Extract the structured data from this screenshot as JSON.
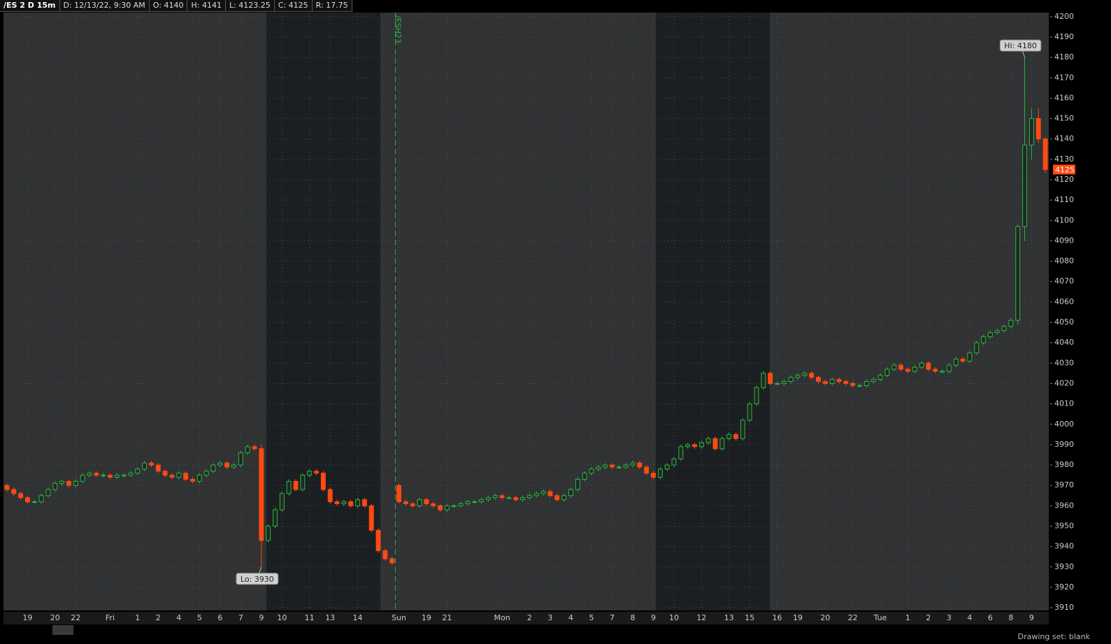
{
  "header": {
    "symbol": "/ES 2 D 15m",
    "fields": [
      "D: 12/13/22, 9:30 AM",
      "O: 4140",
      "H: 4141",
      "L: 4123.25",
      "C: 4125",
      "R: 17.75"
    ]
  },
  "footer": {
    "drawing_set": "Drawing set: blank"
  },
  "chart_data": {
    "type": "candlestick",
    "up_color": "#2fb344",
    "down_color": "#ff4a12",
    "grid": true,
    "xlim": [
      -0.5,
      151.5
    ],
    "ylim": [
      3909,
      4202
    ],
    "yticks": [
      3910,
      3920,
      3930,
      3940,
      3950,
      3960,
      3970,
      3980,
      3990,
      4000,
      4010,
      4020,
      4030,
      4040,
      4050,
      4060,
      4070,
      4080,
      4090,
      4100,
      4110,
      4120,
      4130,
      4140,
      4150,
      4160,
      4170,
      4180,
      4190,
      4200
    ],
    "xticks": [
      {
        "value": 3,
        "label": "19"
      },
      {
        "value": 7,
        "label": "20"
      },
      {
        "value": 10,
        "label": "22"
      },
      {
        "value": 15,
        "label": "Fri"
      },
      {
        "value": 19,
        "label": "1"
      },
      {
        "value": 22,
        "label": "2"
      },
      {
        "value": 25,
        "label": "4"
      },
      {
        "value": 28,
        "label": "5"
      },
      {
        "value": 31,
        "label": "6"
      },
      {
        "value": 34,
        "label": "7"
      },
      {
        "value": 37,
        "label": "9"
      },
      {
        "value": 40,
        "label": "10"
      },
      {
        "value": 44,
        "label": "11"
      },
      {
        "value": 47,
        "label": "13"
      },
      {
        "value": 51,
        "label": "14"
      },
      {
        "value": 57,
        "label": "Sun"
      },
      {
        "value": 61,
        "label": "19"
      },
      {
        "value": 64,
        "label": "21"
      },
      {
        "value": 72,
        "label": "Mon"
      },
      {
        "value": 76,
        "label": "2"
      },
      {
        "value": 79,
        "label": "3"
      },
      {
        "value": 82,
        "label": "4"
      },
      {
        "value": 85,
        "label": "5"
      },
      {
        "value": 88,
        "label": "7"
      },
      {
        "value": 91,
        "label": "8"
      },
      {
        "value": 94,
        "label": "9"
      },
      {
        "value": 97,
        "label": "10"
      },
      {
        "value": 101,
        "label": "12"
      },
      {
        "value": 105,
        "label": "13"
      },
      {
        "value": 108,
        "label": "15"
      },
      {
        "value": 112,
        "label": "16"
      },
      {
        "value": 115,
        "label": "19"
      },
      {
        "value": 119,
        "label": "20"
      },
      {
        "value": 123,
        "label": "22"
      },
      {
        "value": 127,
        "label": "Tue"
      },
      {
        "value": 131,
        "label": "1"
      },
      {
        "value": 134,
        "label": "2"
      },
      {
        "value": 137,
        "label": "3"
      },
      {
        "value": 140,
        "label": "4"
      },
      {
        "value": 143,
        "label": "6"
      },
      {
        "value": 146,
        "label": "8"
      },
      {
        "value": 149,
        "label": "9"
      }
    ],
    "open": [
      3970,
      3968,
      3966,
      3964,
      3962,
      3962,
      3965,
      3968,
      3971,
      3972,
      3970,
      3972,
      3975,
      3976,
      3975,
      3975,
      3974,
      3975,
      3975,
      3976,
      3978,
      3981,
      3980,
      3977,
      3975,
      3974,
      3976,
      3973,
      3972,
      3975,
      3977,
      3980,
      3981,
      3979,
      3980,
      3986,
      3989,
      3988,
      3943,
      3950,
      3958,
      3966,
      3972,
      3968,
      3975,
      3977,
      3976,
      3968,
      3962,
      3961,
      3962,
      3960,
      3963,
      3960,
      3948,
      3938,
      3934,
      3970,
      3962,
      3961,
      3960,
      3963,
      3961,
      3960,
      3958,
      3960,
      3960,
      3961,
      3962,
      3962,
      3963,
      3964,
      3965,
      3964,
      3964,
      3963,
      3964,
      3965,
      3966,
      3967,
      3965,
      3963,
      3965,
      3968,
      3973,
      3976,
      3978,
      3979,
      3980,
      3979,
      3979,
      3980,
      3981,
      3979,
      3976,
      3974,
      3978,
      3980,
      3983,
      3989,
      3990,
      3989,
      3991,
      3993,
      3988,
      3993,
      3995,
      3993,
      4002,
      4010,
      4018,
      4025,
      4020,
      4020,
      4021,
      4023,
      4024,
      4025,
      4023,
      4021,
      4020,
      4022,
      4021,
      4020,
      4019,
      4019,
      4021,
      4022,
      4024,
      4027,
      4029,
      4027,
      4026,
      4028,
      4030,
      4027,
      4026,
      4026,
      4029,
      4032,
      4031,
      4035,
      4040,
      4043,
      4045,
      4046,
      4048,
      4051,
      4097,
      4137,
      4150,
      4140
    ],
    "high": [
      3971,
      3969,
      3967,
      3965,
      3963,
      3966,
      3969,
      3972,
      3973,
      3973,
      3973,
      3976,
      3977,
      3977,
      3976,
      3976,
      3976,
      3976,
      3977,
      3979,
      3982,
      3982,
      3981,
      3978,
      3976,
      3977,
      3977,
      3974,
      3976,
      3978,
      3981,
      3982,
      3982,
      3981,
      3987,
      3990,
      3990,
      3990,
      3951,
      3959,
      3967,
      3973,
      3973,
      3976,
      3978,
      3978,
      3977,
      3969,
      3963,
      3963,
      3963,
      3964,
      3964,
      3961,
      3949,
      3939,
      3935,
      3971,
      3963,
      3962,
      3964,
      3964,
      3962,
      3961,
      3961,
      3961,
      3962,
      3963,
      3963,
      3964,
      3965,
      3966,
      3966,
      3965,
      3965,
      3965,
      3966,
      3967,
      3968,
      3968,
      3966,
      3966,
      3969,
      3974,
      3977,
      3979,
      3980,
      3981,
      3981,
      3980,
      3981,
      3982,
      3982,
      3980,
      3977,
      3979,
      3981,
      3984,
      3990,
      3991,
      3991,
      3992,
      3994,
      3994,
      3994,
      3996,
      3996,
      4003,
      4011,
      4019,
      4026,
      4026,
      4021,
      4022,
      4024,
      4025,
      4026,
      4026,
      4024,
      4022,
      4023,
      4023,
      4022,
      4021,
      4020,
      4022,
      4023,
      4025,
      4028,
      4030,
      4030,
      4028,
      4029,
      4031,
      4031,
      4028,
      4027,
      4030,
      4033,
      4033,
      4036,
      4041,
      4044,
      4046,
      4047,
      4049,
      4052,
      4098,
      4180,
      4155,
      4155,
      4141
    ],
    "low": [
      3967,
      3965,
      3963,
      3961,
      3961,
      3961,
      3964,
      3967,
      3970,
      3969,
      3969,
      3971,
      3974,
      3974,
      3974,
      3973,
      3973,
      3974,
      3974,
      3975,
      3977,
      3979,
      3976,
      3974,
      3973,
      3973,
      3972,
      3971,
      3971,
      3974,
      3976,
      3979,
      3978,
      3978,
      3979,
      3985,
      3987,
      3930,
      3942,
      3949,
      3957,
      3965,
      3967,
      3967,
      3974,
      3975,
      3967,
      3961,
      3960,
      3960,
      3959,
      3959,
      3959,
      3947,
      3937,
      3933,
      3931,
      3961,
      3960,
      3959,
      3959,
      3960,
      3959,
      3957,
      3957,
      3959,
      3959,
      3960,
      3961,
      3961,
      3962,
      3963,
      3963,
      3963,
      3962,
      3962,
      3963,
      3964,
      3965,
      3964,
      3962,
      3962,
      3964,
      3967,
      3972,
      3975,
      3977,
      3978,
      3978,
      3978,
      3978,
      3979,
      3978,
      3975,
      3973,
      3973,
      3977,
      3979,
      3982,
      3988,
      3988,
      3988,
      3990,
      3987,
      3987,
      3992,
      3992,
      3992,
      4001,
      4009,
      4017,
      4019,
      4019,
      4019,
      4020,
      4022,
      4023,
      4022,
      4020,
      4019,
      4019,
      4020,
      4019,
      4018,
      4018,
      4018,
      4020,
      4021,
      4023,
      4026,
      4026,
      4025,
      4025,
      4027,
      4026,
      4025,
      4025,
      4025,
      4028,
      4030,
      4030,
      4034,
      4039,
      4042,
      4044,
      4045,
      4047,
      4049,
      4090,
      4130,
      4138,
      4123.25
    ],
    "close": [
      3968,
      3966,
      3964,
      3962,
      3962,
      3965,
      3968,
      3971,
      3972,
      3970,
      3972,
      3975,
      3976,
      3975,
      3975,
      3974,
      3975,
      3975,
      3976,
      3978,
      3981,
      3980,
      3977,
      3975,
      3974,
      3976,
      3973,
      3972,
      3975,
      3977,
      3980,
      3981,
      3979,
      3980,
      3986,
      3989,
      3988,
      3943,
      3950,
      3958,
      3966,
      3972,
      3968,
      3975,
      3977,
      3976,
      3968,
      3962,
      3961,
      3962,
      3960,
      3963,
      3960,
      3948,
      3938,
      3934,
      3932,
      3962,
      3961,
      3960,
      3963,
      3961,
      3960,
      3958,
      3960,
      3960,
      3961,
      3962,
      3962,
      3963,
      3964,
      3965,
      3964,
      3964,
      3963,
      3964,
      3965,
      3966,
      3967,
      3965,
      3963,
      3965,
      3968,
      3973,
      3976,
      3978,
      3979,
      3980,
      3979,
      3979,
      3980,
      3981,
      3979,
      3976,
      3974,
      3978,
      3980,
      3983,
      3989,
      3990,
      3989,
      3991,
      3993,
      3988,
      3993,
      3995,
      3993,
      4002,
      4010,
      4018,
      4025,
      4020,
      4020,
      4021,
      4023,
      4024,
      4025,
      4023,
      4021,
      4020,
      4022,
      4021,
      4020,
      4019,
      4019,
      4021,
      4022,
      4024,
      4027,
      4029,
      4027,
      4026,
      4028,
      4030,
      4027,
      4026,
      4026,
      4029,
      4032,
      4031,
      4035,
      4040,
      4043,
      4045,
      4046,
      4048,
      4051,
      4097,
      4137,
      4150,
      4140,
      4125
    ],
    "annotations": [
      {
        "text": "Hi: 4180",
        "x": 148,
        "y": 4180
      },
      {
        "text": "Lo: 3930",
        "x": 37,
        "y": 3930
      }
    ],
    "vline": {
      "label": "/ESH23",
      "x": 56.5
    }
  }
}
